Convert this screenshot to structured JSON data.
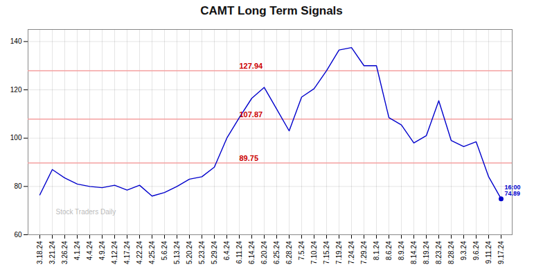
{
  "chart_data": {
    "type": "line",
    "title": "CAMT Long Term Signals",
    "categories": [
      "3.18.24",
      "3.21.24",
      "3.26.24",
      "4.1.24",
      "4.4.24",
      "4.9.24",
      "4.12.24",
      "4.17.24",
      "4.22.24",
      "4.25.24",
      "5.6.24",
      "5.13.24",
      "5.20.24",
      "5.23.24",
      "5.29.24",
      "6.4.24",
      "6.11.24",
      "6.14.24",
      "6.20.24",
      "6.25.24",
      "6.28.24",
      "7.5.24",
      "7.10.24",
      "7.15.24",
      "7.19.24",
      "7.24.24",
      "7.29.24",
      "8.1.24",
      "8.6.24",
      "8.9.24",
      "8.14.24",
      "8.19.24",
      "8.23.24",
      "8.28.24",
      "9.3.24",
      "9.6.24",
      "9.11.24",
      "9.17.24"
    ],
    "values": [
      76.5,
      87.0,
      83.5,
      81.0,
      80.0,
      79.5,
      80.5,
      78.5,
      80.5,
      76.0,
      77.5,
      80.0,
      83.0,
      84.0,
      88.0,
      100.0,
      108.5,
      116.5,
      121.0,
      112.0,
      103.0,
      117.0,
      120.5,
      127.94,
      136.5,
      137.5,
      130.0,
      130.0,
      108.5,
      105.5,
      98.0,
      101.0,
      115.5,
      99.0,
      96.5,
      98.5,
      84.0,
      74.89
    ],
    "color": "#0000cc",
    "ylim": [
      60,
      145
    ],
    "yticks": [
      60,
      80,
      100,
      120,
      140
    ],
    "grid": true,
    "reference_lines": [
      {
        "y": 127.94,
        "label": "127.94",
        "color": "#f5a0a0",
        "label_color": "#cc0000"
      },
      {
        "y": 107.87,
        "label": "107.87",
        "color": "#f5a0a0",
        "label_color": "#cc0000"
      },
      {
        "y": 89.75,
        "label": "89.75",
        "color": "#f5a0a0",
        "label_color": "#cc0000"
      }
    ],
    "annotations": [
      {
        "text": "16:00\n74.89",
        "x": "9.17.24",
        "y": 74.89,
        "color": "#0000cc",
        "marker": "o"
      },
      {
        "text": "Stock Traders Daily",
        "color": "#bbbbbb"
      }
    ]
  }
}
